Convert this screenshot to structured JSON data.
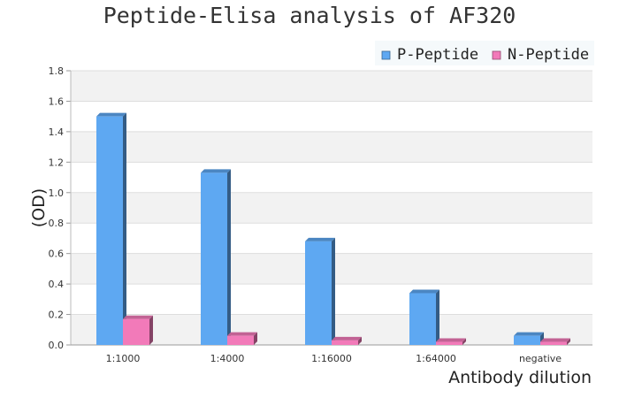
{
  "chart_data": {
    "type": "bar",
    "title": "Peptide-Elisa analysis of AF320",
    "xlabel": "Antibody dilution",
    "ylabel": "(OD)",
    "categories": [
      "1:1000",
      "1:4000",
      "1:16000",
      "1:64000",
      "negative"
    ],
    "series": [
      {
        "name": "P-Peptide",
        "values": [
          1.5,
          1.13,
          0.68,
          0.34,
          0.06
        ],
        "color": "#5ea8f2"
      },
      {
        "name": "N-Peptide",
        "values": [
          0.17,
          0.06,
          0.03,
          0.02,
          0.02
        ],
        "color": "#f27ab9"
      }
    ],
    "ylim": [
      0,
      1.8
    ],
    "yticks": [
      "0.0",
      "0.2",
      "0.4",
      "0.6",
      "0.8",
      "1.0",
      "1.2",
      "1.4",
      "1.6",
      "1.8"
    ],
    "grid": true,
    "legend_position": "top-right",
    "plot_band_color": "#f2f2f2"
  }
}
